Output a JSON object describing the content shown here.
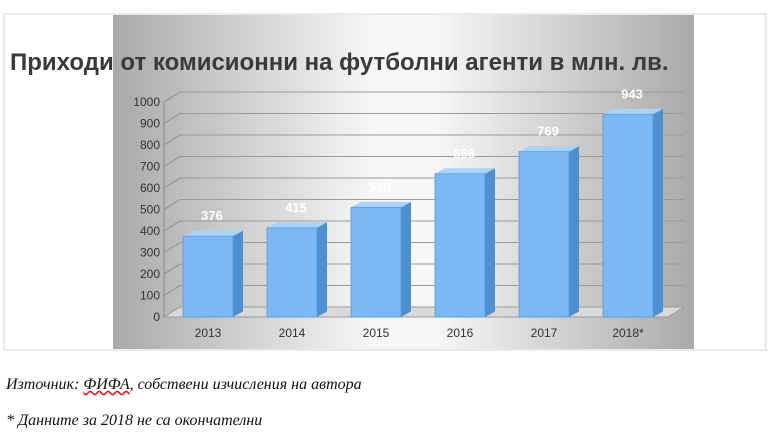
{
  "chart_data": {
    "type": "bar",
    "title": "Приходи от комисионни на футболни агенти в млн. лв.",
    "categories": [
      "2013",
      "2014",
      "2015",
      "2016",
      "2017",
      "2018*"
    ],
    "values": [
      376,
      415,
      510,
      666,
      769,
      943
    ],
    "data_labels": [
      "376",
      "415",
      "510",
      "666",
      "769",
      "943"
    ],
    "ylim": [
      0,
      1000
    ],
    "y_ticks": [
      "0",
      "100",
      "200",
      "300",
      "400",
      "500",
      "600",
      "700",
      "800",
      "900",
      "1000"
    ],
    "grid": true,
    "legend": "none",
    "style": "3d-columns",
    "colors": {
      "bar": "#7ab9f5",
      "bar_side": "#4f8fcf",
      "bar_top": "#a9d3fb",
      "label": "#ffffff"
    }
  },
  "notes": {
    "source_prefix": "Източник: ",
    "source_link": "ФИФА",
    "source_rest": ", собствени изчисления на автора",
    "footnote": "* Данните за 2018 не са окончателни"
  }
}
